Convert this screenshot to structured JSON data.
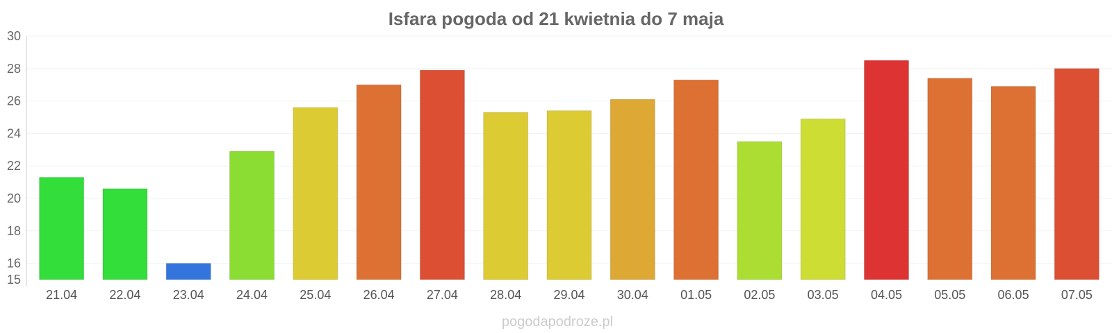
{
  "chart_data": {
    "type": "bar",
    "title": "Isfara pogoda od 21 kwietnia do 7 maja",
    "categories": [
      "21.04",
      "22.04",
      "23.04",
      "24.04",
      "25.04",
      "26.04",
      "27.04",
      "28.04",
      "29.04",
      "30.04",
      "01.05",
      "02.05",
      "03.05",
      "04.05",
      "05.05",
      "06.05",
      "07.05"
    ],
    "values": [
      21.3,
      20.6,
      16.0,
      22.9,
      25.6,
      27.0,
      27.9,
      25.3,
      25.4,
      26.1,
      27.3,
      23.5,
      24.9,
      28.5,
      27.4,
      26.9,
      28.0
    ],
    "colors": [
      "#33dd3a",
      "#33dd3a",
      "#3375dd",
      "#8cdd33",
      "#ddcb33",
      "#dd7033",
      "#dd4f33",
      "#ddcb33",
      "#ddcb33",
      "#dda833",
      "#dd7033",
      "#abdd33",
      "#cddd33",
      "#dd3333",
      "#dd7033",
      "#dd7033",
      "#dd4f33"
    ],
    "ylim": [
      15,
      30
    ],
    "yticks": [
      15,
      16,
      18,
      20,
      22,
      24,
      26,
      28,
      30
    ],
    "grid": true,
    "xlabel": "",
    "ylabel": ""
  },
  "source": "pogodapodroze.pl"
}
